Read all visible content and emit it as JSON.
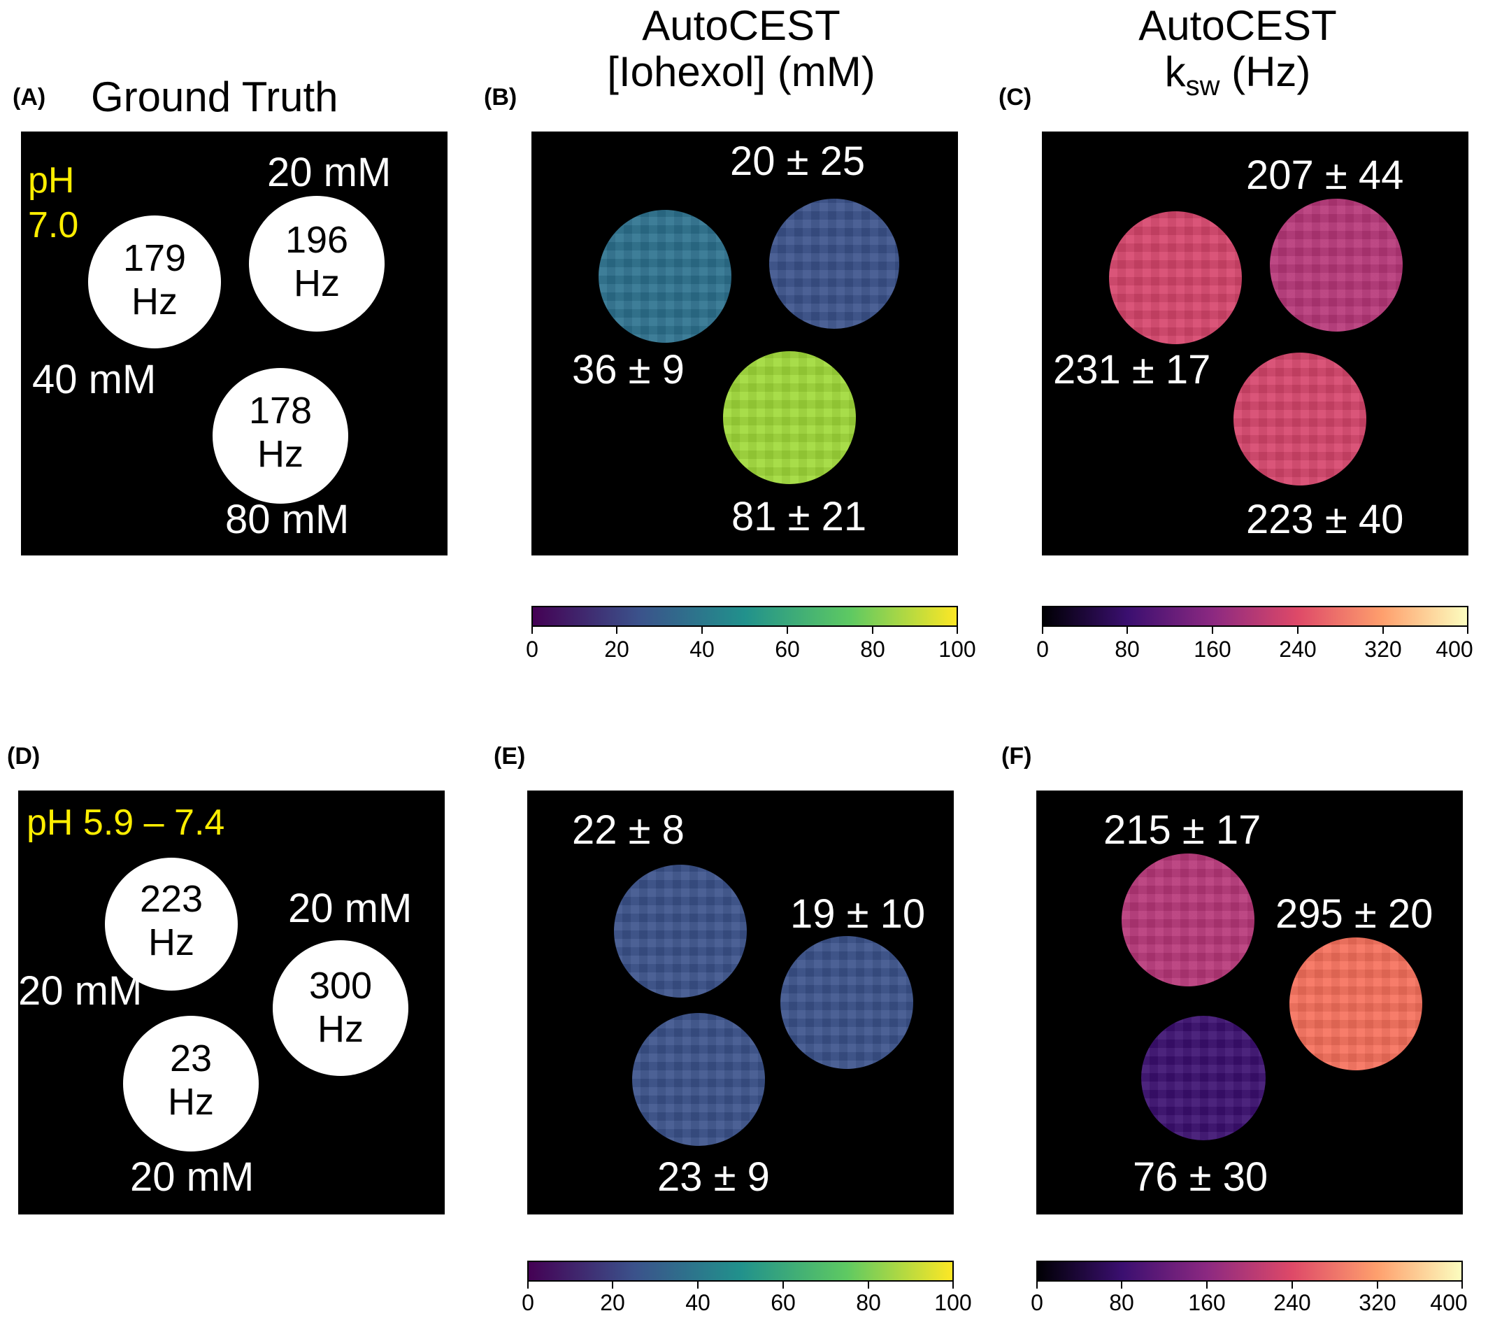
{
  "column_titles": {
    "a": "Ground Truth",
    "b_line1": "AutoCEST",
    "b_line2": "[Iohexol] (mM)",
    "c_line1": "AutoCEST",
    "c_line2_k": "k",
    "c_line2_sub": "sw",
    "c_line2_rest": " (Hz)"
  },
  "panels": {
    "A": {
      "label": "(A)",
      "ph": [
        "pH",
        "7.0"
      ],
      "discs": [
        {
          "line1": "179",
          "line2": "Hz"
        },
        {
          "line1": "196",
          "line2": "Hz"
        },
        {
          "line1": "178",
          "line2": "Hz"
        }
      ],
      "concentrations": [
        "20 mM",
        "40 mM",
        "80 mM"
      ]
    },
    "B": {
      "label": "(B)",
      "values": [
        "20 ± 25",
        "36 ± 9",
        "81 ± 21"
      ]
    },
    "C": {
      "label": "(C)",
      "values": [
        "207 ± 44",
        "231 ± 17",
        "223 ± 40"
      ]
    },
    "D": {
      "label": "(D)",
      "ph": "pH 5.9 – 7.4",
      "discs": [
        {
          "line1": "223",
          "line2": "Hz"
        },
        {
          "line1": "300",
          "line2": "Hz"
        },
        {
          "line1": "23",
          "line2": "Hz"
        }
      ],
      "concentrations": [
        "20 mM",
        "20 mM",
        "20 mM"
      ]
    },
    "E": {
      "label": "(E)",
      "values": [
        "22 ± 8",
        "19 ± 10",
        "23 ± 9"
      ]
    },
    "F": {
      "label": "(F)",
      "values": [
        "215 ± 17",
        "295 ± 20",
        "76 ± 30"
      ]
    }
  },
  "colorbars": {
    "viridis": {
      "ticks": [
        "0",
        "20",
        "40",
        "60",
        "80",
        "100"
      ],
      "range": [
        0,
        100
      ],
      "colormap": "viridis"
    },
    "magma": {
      "ticks": [
        "0",
        "80",
        "160",
        "240",
        "320",
        "400"
      ],
      "range": [
        0,
        400
      ],
      "colormap": "magma"
    }
  },
  "colors": {
    "yellow_label": "#ffee00",
    "viridis_c1": "#2c718e",
    "viridis_c2": "#3b528b",
    "viridis_c3": "#a0da39",
    "magma_c1": "#d6456c",
    "magma_c2": "#b73779",
    "magma_c3": "#f7705c",
    "magma_c4": "#3b0f70"
  }
}
